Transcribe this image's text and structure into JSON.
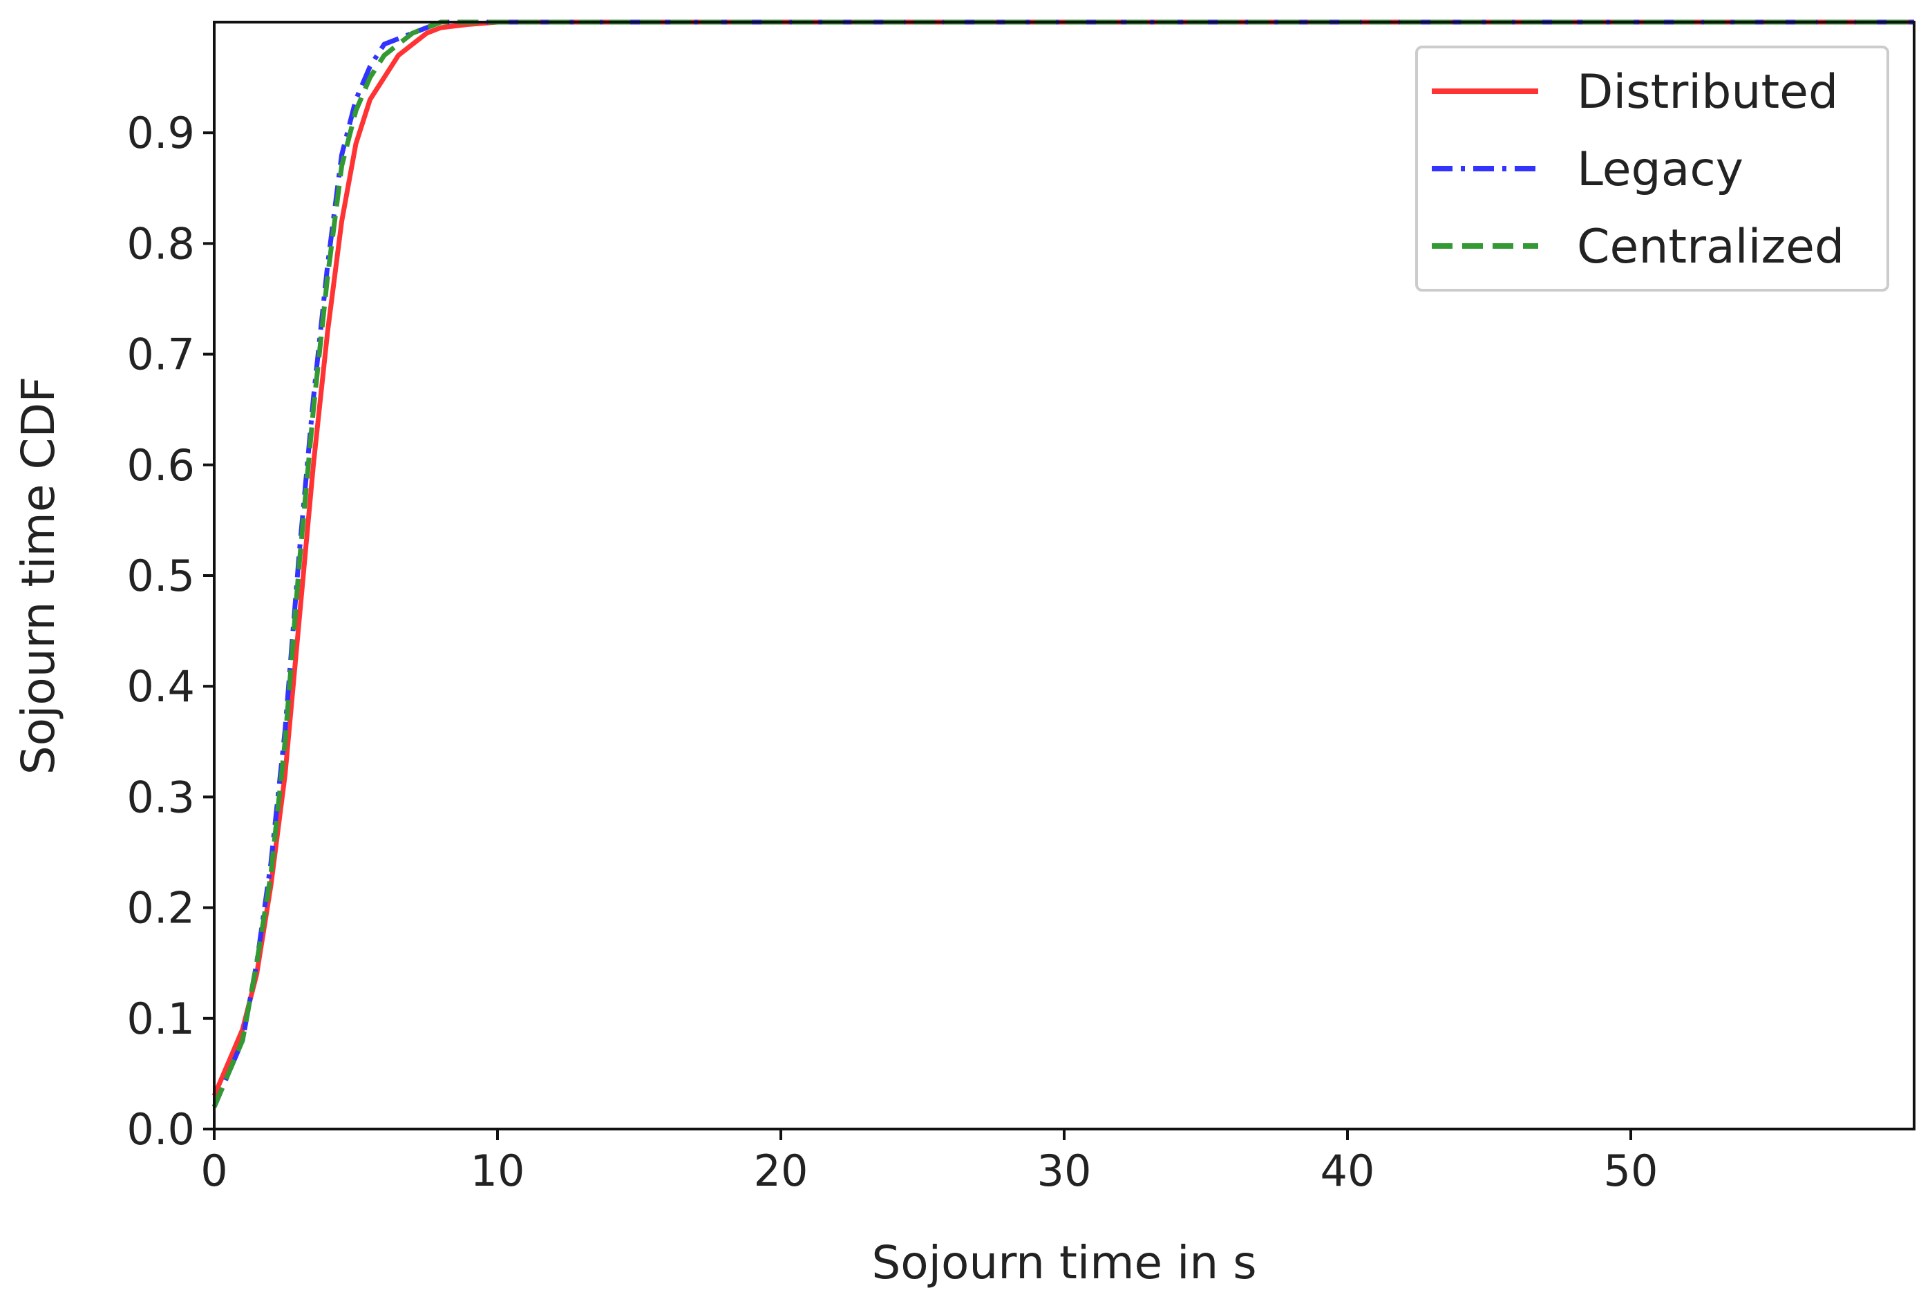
{
  "chart_data": {
    "type": "line",
    "xlabel": "Sojourn time in s",
    "ylabel": "Sojourn time CDF",
    "xlim": [
      0,
      60
    ],
    "ylim": [
      0,
      1.0
    ],
    "xticks": [
      0,
      10,
      20,
      30,
      40,
      50
    ],
    "yticks": [
      0.0,
      0.1,
      0.2,
      0.3,
      0.4,
      0.5,
      0.6,
      0.7,
      0.8,
      0.9
    ],
    "grid": false,
    "legend_position": "top-right",
    "series": [
      {
        "name": "Distributed",
        "color": "#ff3333",
        "style": "solid",
        "x": [
          0,
          0.5,
          1,
          1.5,
          2,
          2.5,
          3,
          3.5,
          4,
          4.5,
          5,
          5.5,
          6,
          6.5,
          7,
          7.5,
          8,
          9,
          10,
          12,
          15,
          20,
          30,
          40,
          50,
          60
        ],
        "y": [
          0.03,
          0.06,
          0.09,
          0.14,
          0.22,
          0.32,
          0.46,
          0.6,
          0.72,
          0.82,
          0.89,
          0.93,
          0.95,
          0.97,
          0.98,
          0.99,
          0.995,
          0.998,
          1.0,
          1.0,
          1.0,
          1.0,
          1.0,
          1.0,
          1.0,
          1.0
        ]
      },
      {
        "name": "Legacy",
        "color": "#3333ff",
        "style": "dashdot",
        "x": [
          0,
          0.5,
          1,
          1.5,
          2,
          2.5,
          3,
          3.5,
          4,
          4.5,
          5,
          5.5,
          6,
          6.5,
          7,
          7.5,
          8,
          9,
          10,
          12,
          15,
          20,
          30,
          40,
          50,
          60
        ],
        "y": [
          0.02,
          0.05,
          0.08,
          0.15,
          0.24,
          0.36,
          0.52,
          0.66,
          0.78,
          0.88,
          0.93,
          0.96,
          0.98,
          0.985,
          0.99,
          0.995,
          1.0,
          1.0,
          1.0,
          1.0,
          1.0,
          1.0,
          1.0,
          1.0,
          1.0,
          1.0
        ]
      },
      {
        "name": "Centralized",
        "color": "#339933",
        "style": "dashed",
        "x": [
          0,
          0.5,
          1,
          1.5,
          2,
          2.5,
          3,
          3.5,
          4,
          4.5,
          5,
          5.5,
          6,
          6.5,
          7,
          7.5,
          8,
          9,
          10,
          12,
          15,
          20,
          30,
          40,
          50,
          60
        ],
        "y": [
          0.02,
          0.05,
          0.08,
          0.15,
          0.23,
          0.35,
          0.51,
          0.65,
          0.77,
          0.87,
          0.92,
          0.95,
          0.97,
          0.98,
          0.99,
          0.995,
          1.0,
          1.0,
          1.0,
          1.0,
          1.0,
          1.0,
          1.0,
          1.0,
          1.0,
          1.0
        ]
      }
    ]
  }
}
